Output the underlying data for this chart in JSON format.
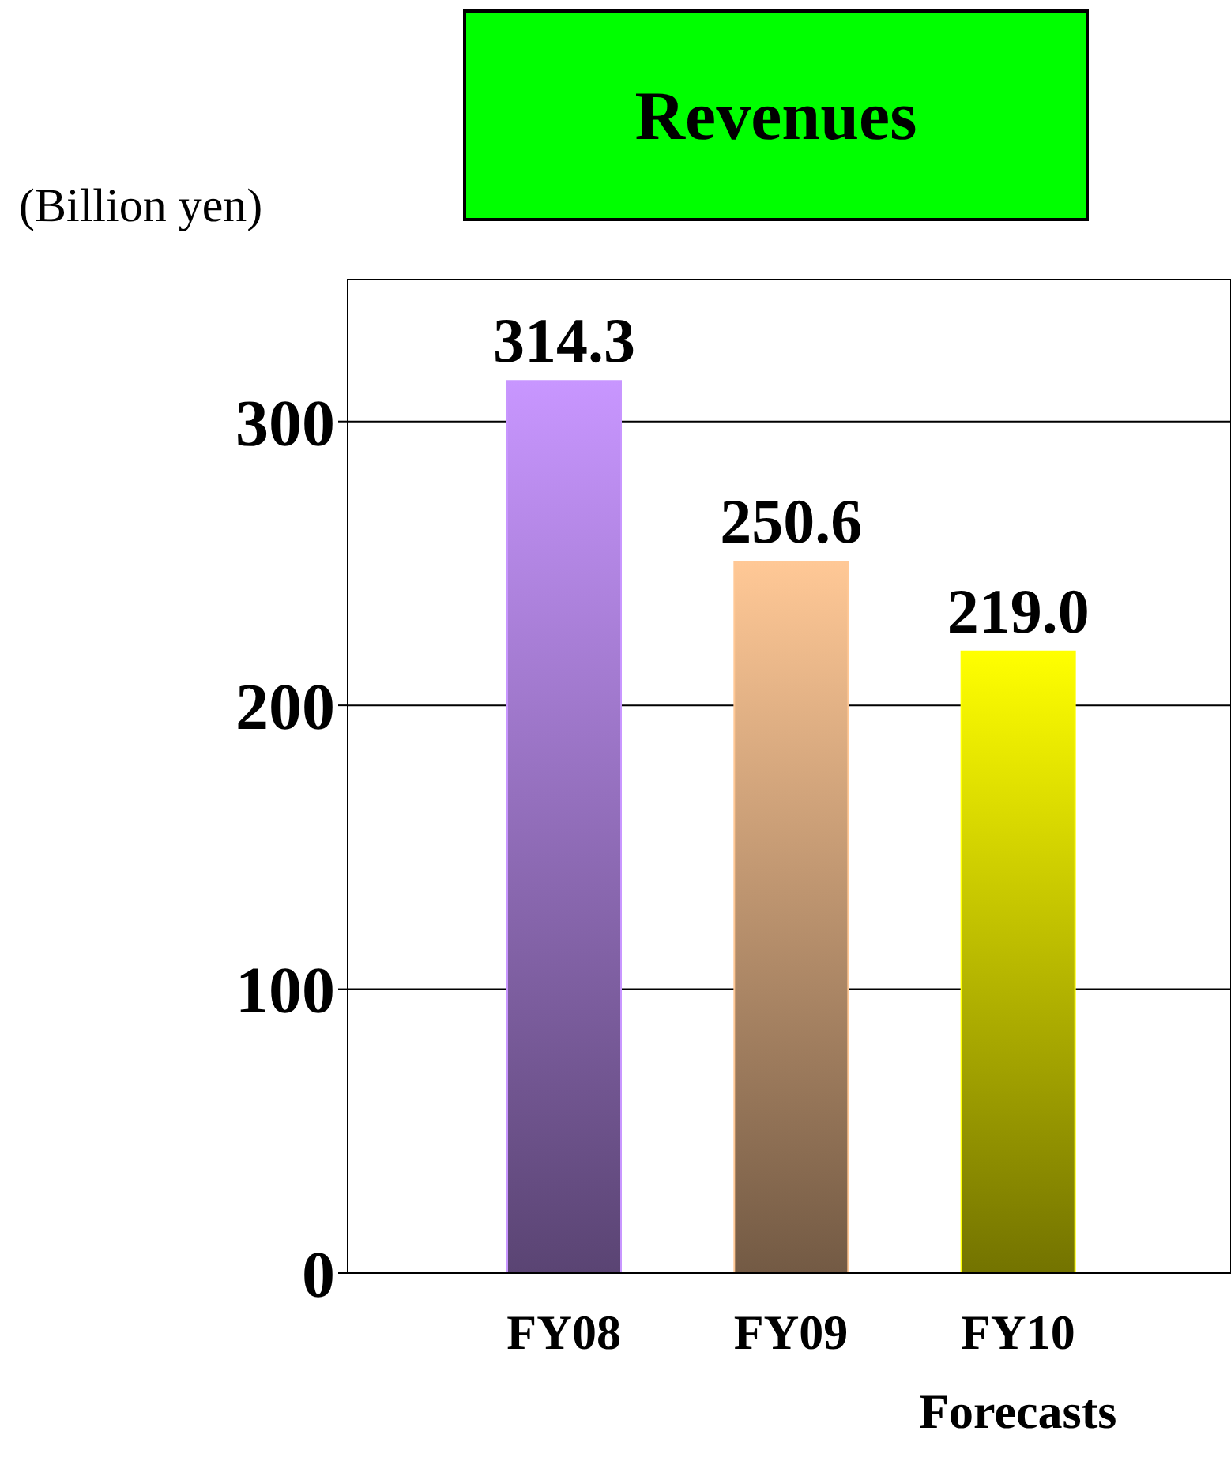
{
  "chart_data": {
    "type": "bar",
    "title": "Revenues",
    "ylabel": "(Billion yen)",
    "categories": [
      "FY08",
      "FY09",
      "FY10\nForecasts"
    ],
    "values": [
      314.3,
      250.6,
      219.0
    ],
    "colors": [
      "#c896ff",
      "#ffc896",
      "#ffff00"
    ],
    "value_labels": [
      "314.3",
      "250.6",
      "219.0"
    ],
    "ylim": [
      0,
      350
    ],
    "yticks": [
      0,
      100,
      200,
      300
    ],
    "grid": "y"
  }
}
